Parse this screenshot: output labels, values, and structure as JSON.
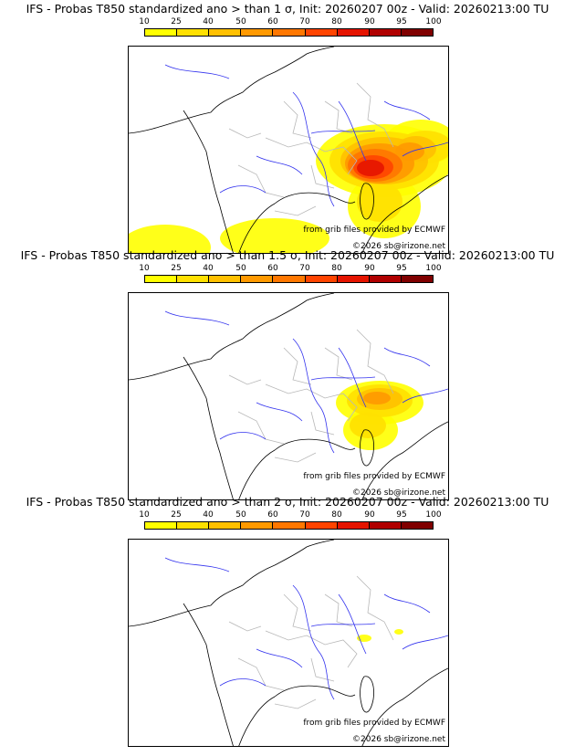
{
  "colorbar": {
    "ticks": [
      "10",
      "25",
      "40",
      "50",
      "60",
      "70",
      "80",
      "90",
      "95",
      "100"
    ],
    "colors": [
      "#ffff00",
      "#ffe000",
      "#ffc000",
      "#ff9900",
      "#ff7700",
      "#ff4400",
      "#e51400",
      "#b00000",
      "#800000"
    ]
  },
  "panels": [
    {
      "title": "IFS - Probas T850  standardized ano > than 1 σ, Init: 20260207 00z - Valid: 20260213:00 TU",
      "source": "from grib files provided by ECMWF",
      "copyright": "©2026 sb@irizone.net",
      "level": "high"
    },
    {
      "title": "IFS - Probas T850  standardized ano > than 1.5 σ, Init: 20260207 00z - Valid: 20260213:00 TU",
      "source": "from grib files provided by ECMWF",
      "copyright": "©2026 sb@irizone.net",
      "level": "mid"
    },
    {
      "title": "IFS - Probas T850  standardized ano > than 2 σ, Init: 20260207 00z - Valid: 20260213:00 TU",
      "source": "from grib files provided by ECMWF",
      "copyright": "©2026 sb@irizone.net",
      "level": "low"
    }
  ]
}
